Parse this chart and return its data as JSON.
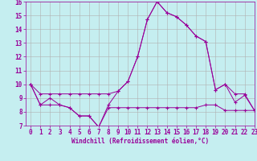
{
  "xlabel": "Windchill (Refroidissement éolien,°C)",
  "background_color": "#c5eef0",
  "grid_color": "#b0b0b0",
  "line_color": "#990099",
  "x": [
    0,
    1,
    2,
    3,
    4,
    5,
    6,
    7,
    8,
    9,
    10,
    11,
    12,
    13,
    14,
    15,
    16,
    17,
    18,
    19,
    20,
    21,
    22,
    23
  ],
  "y_temp": [
    10.0,
    8.5,
    9.0,
    8.5,
    8.3,
    7.7,
    7.7,
    6.9,
    8.5,
    9.5,
    10.2,
    12.0,
    14.7,
    16.0,
    15.2,
    14.9,
    14.3,
    13.5,
    13.1,
    9.6,
    10.0,
    8.7,
    9.2,
    8.1
  ],
  "y_high": [
    10.0,
    9.3,
    9.3,
    9.3,
    9.3,
    9.3,
    9.3,
    9.3,
    9.3,
    9.5,
    10.2,
    12.0,
    14.7,
    16.0,
    15.2,
    14.9,
    14.3,
    13.5,
    13.1,
    9.6,
    10.0,
    9.3,
    9.3,
    8.1
  ],
  "y_low": [
    10.0,
    8.5,
    8.5,
    8.5,
    8.3,
    7.7,
    7.7,
    6.9,
    8.3,
    8.3,
    8.3,
    8.3,
    8.3,
    8.3,
    8.3,
    8.3,
    8.3,
    8.3,
    8.5,
    8.5,
    8.1,
    8.1,
    8.1,
    8.1
  ],
  "ylim": [
    7,
    16
  ],
  "xlim": [
    -0.5,
    23
  ],
  "yticks": [
    7,
    8,
    9,
    10,
    11,
    12,
    13,
    14,
    15,
    16
  ],
  "xticks": [
    0,
    1,
    2,
    3,
    4,
    5,
    6,
    7,
    8,
    9,
    10,
    11,
    12,
    13,
    14,
    15,
    16,
    17,
    18,
    19,
    20,
    21,
    22,
    23
  ],
  "tick_fontsize": 5.5,
  "xlabel_fontsize": 5.5
}
